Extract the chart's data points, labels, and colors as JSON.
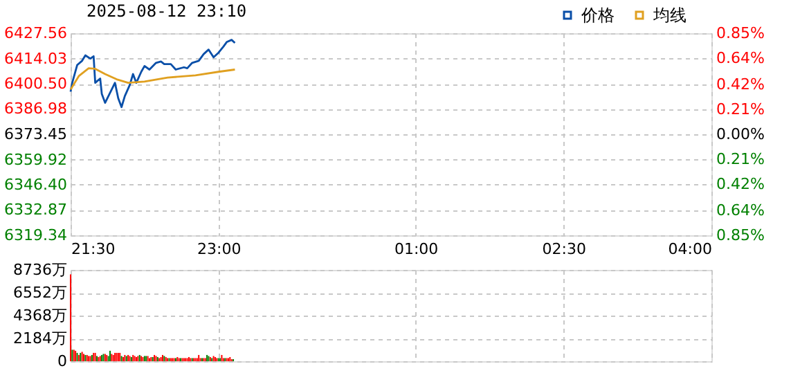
{
  "chart_data": [
    {
      "type": "line",
      "title": "2025-08-12 23:10",
      "xlim": [
        "2025-08-12T21:30",
        "2025-08-13T04:00"
      ],
      "xticks": [
        {
          "value": "2025-08-12T21:30",
          "label": "21:30"
        },
        {
          "value": "2025-08-12T23:00",
          "label": "23:00"
        },
        {
          "value": "2025-08-13T01:00",
          "label": "01:00"
        },
        {
          "value": "2025-08-13T02:30",
          "label": "02:30"
        },
        {
          "value": "2025-08-13T04:00",
          "label": "04:00"
        }
      ],
      "ylim": [
        6319.34,
        6427.56
      ],
      "yticks": [
        6319.34,
        6332.87,
        {
          "value": 6346.4,
          "label": "6346.40"
        },
        6359.92,
        6373.45,
        6386.98,
        {
          "value": 6400.5,
          "label": "6400.50"
        },
        6414.03,
        6427.56
      ],
      "y2lim": [
        -0.85,
        0.85
      ],
      "y2ticks": [
        {
          "value": -0.85,
          "label": "0.85%"
        },
        {
          "value": -0.64,
          "label": "0.64%"
        },
        {
          "value": -0.42,
          "label": "0.42%"
        },
        {
          "value": -0.21,
          "label": "0.21%"
        },
        {
          "value": 0,
          "label": "0.00%"
        },
        {
          "value": 0.21,
          "label": "0.21%"
        },
        {
          "value": 0.42,
          "label": "0.42%"
        },
        {
          "value": 0.64,
          "label": "0.64%"
        },
        {
          "value": 0.85,
          "label": "0.85%"
        }
      ],
      "grid": true,
      "legend": "top right",
      "series": [
        {
          "name": "价格",
          "color": "#0a4fa8",
          "x": [
            "2025-08-12T21:30",
            "2025-08-12T21:31",
            "2025-08-12T21:34",
            "2025-08-12T21:37",
            "2025-08-12T21:39",
            "2025-08-12T21:42",
            "2025-08-12T21:44",
            "2025-08-12T21:45",
            "2025-08-12T21:48",
            "2025-08-12T21:49",
            "2025-08-12T21:51",
            "2025-08-12T21:55",
            "2025-08-12T21:57",
            "2025-08-12T21:59",
            "2025-08-12T22:01",
            "2025-08-12T22:03",
            "2025-08-12T22:06",
            "2025-08-12T22:08",
            "2025-08-12T22:10",
            "2025-08-12T22:13",
            "2025-08-12T22:15",
            "2025-08-12T22:18",
            "2025-08-12T22:22",
            "2025-08-12T22:25",
            "2025-08-12T22:27",
            "2025-08-12T22:31",
            "2025-08-12T22:34",
            "2025-08-12T22:39",
            "2025-08-12T22:41",
            "2025-08-12T22:44",
            "2025-08-12T22:48",
            "2025-08-12T22:51",
            "2025-08-12T22:54",
            "2025-08-12T22:57",
            "2025-08-12T23:00",
            "2025-08-12T23:03",
            "2025-08-12T23:05",
            "2025-08-12T23:08",
            "2025-08-12T23:10"
          ],
          "values": [
            6396.2,
            6401.0,
            6410.5,
            6412.8,
            6415.7,
            6414.0,
            6415.2,
            6401.0,
            6403.3,
            6395.0,
            6390.3,
            6397.4,
            6401.0,
            6392.7,
            6388.0,
            6393.9,
            6399.8,
            6405.7,
            6401.0,
            6406.9,
            6410.0,
            6408.1,
            6411.7,
            6412.4,
            6411.0,
            6411.0,
            6408.1,
            6409.3,
            6408.8,
            6411.7,
            6412.8,
            6416.4,
            6418.8,
            6414.7,
            6417.1,
            6420.4,
            6422.8,
            6424.0,
            6422.4
          ]
        },
        {
          "name": "均线",
          "color": "#e0a020",
          "x": [
            "2025-08-12T21:30",
            "2025-08-12T21:35",
            "2025-08-12T21:41",
            "2025-08-12T21:45",
            "2025-08-12T21:51",
            "2025-08-12T21:58",
            "2025-08-12T22:05",
            "2025-08-12T22:15",
            "2025-08-12T22:29",
            "2025-08-12T22:46",
            "2025-08-12T23:00",
            "2025-08-12T23:10"
          ],
          "values": [
            6397.4,
            6404.6,
            6408.8,
            6408.5,
            6405.7,
            6402.9,
            6401.0,
            6401.7,
            6403.8,
            6405.0,
            6406.9,
            6408.1
          ]
        }
      ]
    },
    {
      "type": "bar",
      "xlim": [
        "2025-08-12T21:30",
        "2025-08-13T04:00"
      ],
      "xticks": [
        "2025-08-12T21:30",
        "2025-08-12T23:00",
        "2025-08-13T01:00",
        "2025-08-13T02:30",
        "2025-08-13T04:00"
      ],
      "ylim": [
        0,
        8736
      ],
      "yticks": [
        0,
        {
          "value": 2184,
          "label": "2184万"
        },
        {
          "value": 4368,
          "label": "4368万"
        },
        {
          "value": 6552,
          "label": "6552万"
        },
        {
          "value": 8736,
          "label": "8736万"
        }
      ],
      "grid": true,
      "tick_labels": "y",
      "x": [
        "2025-08-12T21:30",
        "2025-08-12T21:31",
        "2025-08-12T21:32",
        "2025-08-12T21:33",
        "2025-08-12T21:34",
        "2025-08-12T21:35",
        "2025-08-12T21:36",
        "2025-08-12T21:37",
        "2025-08-12T21:38",
        "2025-08-12T21:39",
        "2025-08-12T21:40",
        "2025-08-12T21:41",
        "2025-08-12T21:42",
        "2025-08-12T21:43",
        "2025-08-12T21:44",
        "2025-08-12T21:45",
        "2025-08-12T21:46",
        "2025-08-12T21:47",
        "2025-08-12T21:48",
        "2025-08-12T21:49",
        "2025-08-12T21:50",
        "2025-08-12T21:51",
        "2025-08-12T21:52",
        "2025-08-12T21:53",
        "2025-08-12T21:54",
        "2025-08-12T21:55",
        "2025-08-12T21:56",
        "2025-08-12T21:57",
        "2025-08-12T21:58",
        "2025-08-12T21:59",
        "2025-08-12T22:00",
        "2025-08-12T22:01",
        "2025-08-12T22:02",
        "2025-08-12T22:03",
        "2025-08-12T22:04",
        "2025-08-12T22:05",
        "2025-08-12T22:06",
        "2025-08-12T22:07",
        "2025-08-12T22:08",
        "2025-08-12T22:09",
        "2025-08-12T22:10",
        "2025-08-12T22:11",
        "2025-08-12T22:12",
        "2025-08-12T22:13",
        "2025-08-12T22:14",
        "2025-08-12T22:15",
        "2025-08-12T22:16",
        "2025-08-12T22:17",
        "2025-08-12T22:18",
        "2025-08-12T22:19",
        "2025-08-12T22:20",
        "2025-08-12T22:21",
        "2025-08-12T22:22",
        "2025-08-12T22:23",
        "2025-08-12T22:24",
        "2025-08-12T22:25",
        "2025-08-12T22:26",
        "2025-08-12T22:27",
        "2025-08-12T22:28",
        "2025-08-12T22:29",
        "2025-08-12T22:30",
        "2025-08-12T22:31",
        "2025-08-12T22:32",
        "2025-08-12T22:33",
        "2025-08-12T22:34",
        "2025-08-12T22:35",
        "2025-08-12T22:36",
        "2025-08-12T22:37",
        "2025-08-12T22:38",
        "2025-08-12T22:39",
        "2025-08-12T22:40",
        "2025-08-12T22:41",
        "2025-08-12T22:42",
        "2025-08-12T22:43",
        "2025-08-12T22:44",
        "2025-08-12T22:45",
        "2025-08-12T22:46",
        "2025-08-12T22:47",
        "2025-08-12T22:48",
        "2025-08-12T22:49",
        "2025-08-12T22:50",
        "2025-08-12T22:51",
        "2025-08-12T22:52",
        "2025-08-12T22:53",
        "2025-08-12T22:54",
        "2025-08-12T22:55",
        "2025-08-12T22:56",
        "2025-08-12T22:57",
        "2025-08-12T22:58",
        "2025-08-12T22:59",
        "2025-08-12T23:00",
        "2025-08-12T23:01",
        "2025-08-12T23:02",
        "2025-08-12T23:03",
        "2025-08-12T23:04",
        "2025-08-12T23:05",
        "2025-08-12T23:06",
        "2025-08-12T23:07",
        "2025-08-12T23:08",
        "2025-08-12T23:09"
      ],
      "values": [
        8300,
        1100,
        1100,
        1000,
        800,
        600,
        800,
        900,
        700,
        600,
        600,
        500,
        500,
        600,
        800,
        800,
        500,
        400,
        500,
        600,
        700,
        700,
        600,
        500,
        1000,
        700,
        600,
        800,
        800,
        800,
        800,
        500,
        400,
        600,
        500,
        600,
        500,
        400,
        600,
        500,
        400,
        500,
        600,
        500,
        400,
        500,
        500,
        500,
        300,
        400,
        400,
        600,
        500,
        400,
        300,
        400,
        600,
        500,
        400,
        300,
        300,
        300,
        300,
        300,
        300,
        400,
        300,
        300,
        300,
        300,
        300,
        300,
        400,
        300,
        300,
        300,
        300,
        300,
        600,
        300,
        300,
        300,
        300,
        600,
        500,
        400,
        300,
        500,
        400,
        300,
        300,
        300,
        600,
        300,
        300,
        300,
        300,
        400,
        200,
        200
      ],
      "colors": [
        "#ff0000",
        "#008000",
        "#ff0000",
        "#ff0000",
        "#008000",
        "#ff0000",
        "#008000",
        "#ff0000",
        "#ff0000",
        "#008000",
        "#ff0000",
        "#ff0000",
        "#ff0000",
        "#008000",
        "#ff0000",
        "#ff0000",
        "#008000",
        "#ff0000",
        "#ff0000",
        "#008000",
        "#008000",
        "#ff0000",
        "#ff0000",
        "#008000",
        "#008000",
        "#ff0000",
        "#ff0000",
        "#ff0000",
        "#ff0000",
        "#ff0000",
        "#ff0000",
        "#008000",
        "#ff0000",
        "#ff0000",
        "#008000",
        "#ff0000",
        "#ff0000",
        "#008000",
        "#ff0000",
        "#ff0000",
        "#ff0000",
        "#ff0000",
        "#008000",
        "#ff0000",
        "#ff0000",
        "#008000",
        "#008000",
        "#ff0000",
        "#ff0000",
        "#ff0000",
        "#008000",
        "#ff0000",
        "#ff0000",
        "#008000",
        "#ff0000",
        "#ff0000",
        "#ff0000",
        "#008000",
        "#ff0000",
        "#ff0000",
        "#008000",
        "#ff0000",
        "#ff0000",
        "#ff0000",
        "#008000",
        "#ff0000",
        "#ff0000",
        "#008000",
        "#ff0000",
        "#ff0000",
        "#ff0000",
        "#ff0000",
        "#ff0000",
        "#ff0000",
        "#008000",
        "#ff0000",
        "#ff0000",
        "#ff0000",
        "#ff0000",
        "#ff0000",
        "#008000",
        "#ff0000",
        "#ff0000",
        "#008000",
        "#008000",
        "#ff0000",
        "#008000",
        "#ff0000",
        "#ff0000",
        "#ff0000",
        "#008000",
        "#008000",
        "#ff0000",
        "#ff0000",
        "#008000",
        "#ff0000",
        "#ff0000",
        "#ff0000",
        "#ff0000",
        "#008000"
      ]
    }
  ]
}
